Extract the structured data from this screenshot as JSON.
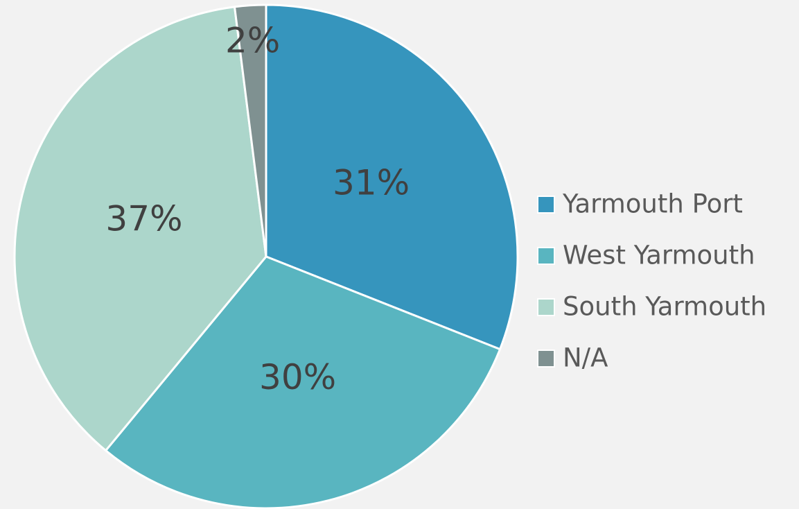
{
  "chart_data": {
    "type": "pie",
    "categories": [
      "Yarmouth Port",
      "West Yarmouth",
      "South Yarmouth",
      "N/A"
    ],
    "values": [
      31,
      30,
      37,
      2
    ],
    "value_labels": [
      "31%",
      "30%",
      "37%",
      "2%"
    ],
    "colors": [
      "#3695bd",
      "#59b5c0",
      "#acd6cb",
      "#7f9191"
    ],
    "legend": "right"
  }
}
